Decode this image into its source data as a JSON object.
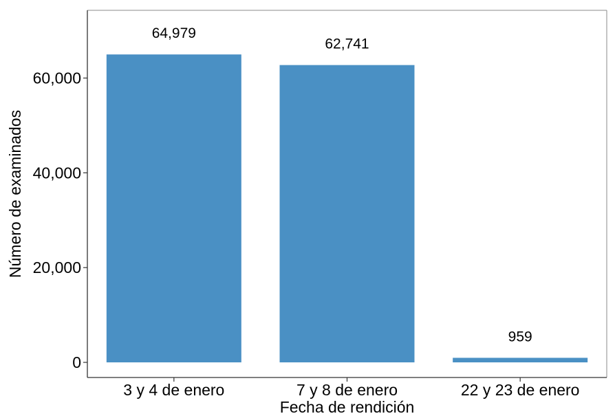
{
  "chart_data": {
    "type": "bar",
    "categories": [
      "3 y 4 de enero",
      "7 y 8 de enero",
      "22 y 23 de enero"
    ],
    "values": [
      64979,
      62741,
      959
    ],
    "data_labels": [
      "64,979",
      "62,741",
      "959"
    ],
    "xlabel": "Fecha de rendición",
    "ylabel": "Número de examinados",
    "ylim": [
      0,
      72000
    ],
    "y_ticks": [
      0,
      20000,
      40000,
      60000
    ],
    "y_tick_labels": [
      "0",
      "20,000",
      "40,000",
      "60,000"
    ],
    "grid": false,
    "legend": "none",
    "colors": {
      "bar": "#4A90C4",
      "axis": "#333333",
      "frame": "#888888"
    }
  }
}
